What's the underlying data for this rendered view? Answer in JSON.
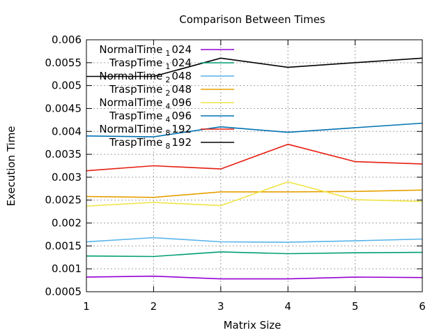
{
  "chart_data": {
    "type": "line",
    "title": "Comparison Between Times",
    "xlabel": "Matrix Size",
    "ylabel": "Execution Time",
    "x": [
      1,
      2,
      3,
      4,
      5,
      6
    ],
    "xlim": [
      1,
      6
    ],
    "ylim": [
      0.0005,
      0.006
    ],
    "xticks": [
      "1",
      "2",
      "3",
      "4",
      "5",
      "6"
    ],
    "yticks": [
      "0.0005",
      "0.001",
      "0.0015",
      "0.002",
      "0.0025",
      "0.003",
      "0.0035",
      "0.004",
      "0.0045",
      "0.005",
      "0.0055",
      "0.006"
    ],
    "grid": true,
    "legend_position": "top-left",
    "series": [
      {
        "name": "NormalTime 1024",
        "label_main": "NormalTime",
        "label_sub": "1",
        "label_tail": "024",
        "color": "#9400d3",
        "values": [
          0.00082,
          0.00084,
          0.00078,
          0.00078,
          0.00082,
          0.00081
        ]
      },
      {
        "name": "TraspTime 1024",
        "label_main": "TraspTime",
        "label_sub": "1",
        "label_tail": "024",
        "color": "#009e73",
        "values": [
          0.00128,
          0.00127,
          0.00137,
          0.00133,
          0.00135,
          0.00136
        ]
      },
      {
        "name": "NormalTime 2048",
        "label_main": "NormalTime",
        "label_sub": "2",
        "label_tail": "048",
        "color": "#56b4e9",
        "values": [
          0.00159,
          0.00168,
          0.00159,
          0.00158,
          0.00161,
          0.00165
        ]
      },
      {
        "name": "TraspTime 2048",
        "label_main": "TraspTime",
        "label_sub": "2",
        "label_tail": "048",
        "color": "#e69f00",
        "values": [
          0.00258,
          0.00256,
          0.00268,
          0.00268,
          0.00269,
          0.00272
        ]
      },
      {
        "name": "NormalTime 4096",
        "label_main": "NormalTime",
        "label_sub": "4",
        "label_tail": "096",
        "color": "#f0e442",
        "values": [
          0.00237,
          0.00245,
          0.00238,
          0.0029,
          0.00251,
          0.00247
        ]
      },
      {
        "name": "TraspTime 4096",
        "label_main": "TraspTime",
        "label_sub": "4",
        "label_tail": "096",
        "color": "#0072b2",
        "values": [
          0.0039,
          0.00388,
          0.0041,
          0.00398,
          0.00408,
          0.00418
        ]
      },
      {
        "name": "NormalTime 8192",
        "label_main": "NormalTime",
        "label_sub": "8",
        "label_tail": "192",
        "color": "#e51e10",
        "values": [
          0.00314,
          0.00325,
          0.00318,
          0.00372,
          0.00334,
          0.00329
        ]
      },
      {
        "name": "TraspTime 8192",
        "label_main": "TraspTime",
        "label_sub": "8",
        "label_tail": "192",
        "color": "#000000",
        "values": [
          0.0052,
          0.0052,
          0.0056,
          0.0054,
          0.0055,
          0.0056
        ]
      }
    ]
  }
}
